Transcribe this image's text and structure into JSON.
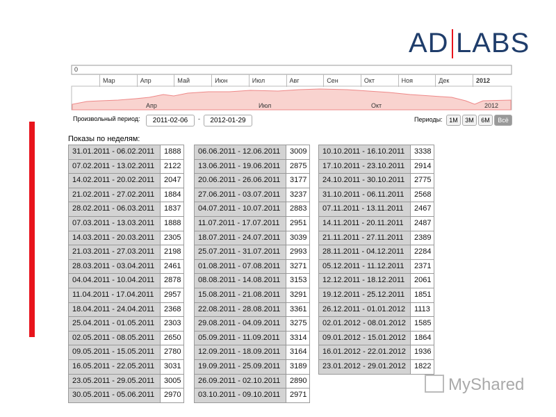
{
  "logo": {
    "left": "AD",
    "right": "LABS"
  },
  "navigator": {
    "zero": "0",
    "months": [
      "Мар",
      "Апр",
      "Май",
      "Июн",
      "Июл",
      "Авг",
      "Сен",
      "Окт",
      "Ноя",
      "Дек"
    ],
    "year": "2012",
    "lower_labels": [
      "Апр",
      "Июл",
      "Окт",
      "2012"
    ]
  },
  "controls": {
    "label": "Произвольный период:",
    "from": "2011-02-06",
    "separator": "-",
    "to": "2012-01-29",
    "periods_label": "Периоды:",
    "periods": [
      "1М",
      "3М",
      "6М",
      "Всё"
    ]
  },
  "title": "Показы по неделям:",
  "tables": [
    {
      "rows": [
        [
          "31.01.2011 - 06.02.2011",
          "1888"
        ],
        [
          "07.02.2011 - 13.02.2011",
          "2122"
        ],
        [
          "14.02.2011 - 20.02.2011",
          "2047"
        ],
        [
          "21.02.2011 - 27.02.2011",
          "1884"
        ],
        [
          "28.02.2011 - 06.03.2011",
          "1837"
        ],
        [
          "07.03.2011 - 13.03.2011",
          "1888"
        ],
        [
          "14.03.2011 - 20.03.2011",
          "2305"
        ],
        [
          "21.03.2011 - 27.03.2011",
          "2198"
        ],
        [
          "28.03.2011 - 03.04.2011",
          "2461"
        ],
        [
          "04.04.2011 - 10.04.2011",
          "2878"
        ],
        [
          "11.04.2011 - 17.04.2011",
          "2957"
        ],
        [
          "18.04.2011 - 24.04.2011",
          "2368"
        ],
        [
          "25.04.2011 - 01.05.2011",
          "2303"
        ],
        [
          "02.05.2011 - 08.05.2011",
          "2650"
        ],
        [
          "09.05.2011 - 15.05.2011",
          "2780"
        ],
        [
          "16.05.2011 - 22.05.2011",
          "3031"
        ],
        [
          "23.05.2011 - 29.05.2011",
          "3005"
        ],
        [
          "30.05.2011 - 05.06.2011",
          "2970"
        ]
      ]
    },
    {
      "rows": [
        [
          "06.06.2011 - 12.06.2011",
          "3009"
        ],
        [
          "13.06.2011 - 19.06.2011",
          "2875"
        ],
        [
          "20.06.2011 - 26.06.2011",
          "3177"
        ],
        [
          "27.06.2011 - 03.07.2011",
          "3237"
        ],
        [
          "04.07.2011 - 10.07.2011",
          "2883"
        ],
        [
          "11.07.2011 - 17.07.2011",
          "2951"
        ],
        [
          "18.07.2011 - 24.07.2011",
          "3039"
        ],
        [
          "25.07.2011 - 31.07.2011",
          "2993"
        ],
        [
          "01.08.2011 - 07.08.2011",
          "3271"
        ],
        [
          "08.08.2011 - 14.08.2011",
          "3153"
        ],
        [
          "15.08.2011 - 21.08.2011",
          "3291"
        ],
        [
          "22.08.2011 - 28.08.2011",
          "3361"
        ],
        [
          "29.08.2011 - 04.09.2011",
          "3275"
        ],
        [
          "05.09.2011 - 11.09.2011",
          "3314"
        ],
        [
          "12.09.2011 - 18.09.2011",
          "3164"
        ],
        [
          "19.09.2011 - 25.09.2011",
          "3189"
        ],
        [
          "26.09.2011 - 02.10.2011",
          "2890"
        ],
        [
          "03.10.2011 - 09.10.2011",
          "2971"
        ]
      ]
    },
    {
      "rows": [
        [
          "10.10.2011 - 16.10.2011",
          "3338"
        ],
        [
          "17.10.2011 - 23.10.2011",
          "2914"
        ],
        [
          "24.10.2011 - 30.10.2011",
          "2775"
        ],
        [
          "31.10.2011 - 06.11.2011",
          "2568"
        ],
        [
          "07.11.2011 - 13.11.2011",
          "2467"
        ],
        [
          "14.11.2011 - 20.11.2011",
          "2487"
        ],
        [
          "21.11.2011 - 27.11.2011",
          "2389"
        ],
        [
          "28.11.2011 - 04.12.2011",
          "2284"
        ],
        [
          "05.12.2011 - 11.12.2011",
          "2371"
        ],
        [
          "12.12.2011 - 18.12.2011",
          "2061"
        ],
        [
          "19.12.2011 - 25.12.2011",
          "1851"
        ],
        [
          "26.12.2011 - 01.01.2012",
          "1113"
        ],
        [
          "02.01.2012 - 08.01.2012",
          "1585"
        ],
        [
          "09.01.2012 - 15.01.2012",
          "1864"
        ],
        [
          "16.01.2012 - 22.01.2012",
          "1936"
        ],
        [
          "23.01.2012 - 29.01.2012",
          "1822"
        ]
      ]
    }
  ],
  "watermark": "MyShared"
}
